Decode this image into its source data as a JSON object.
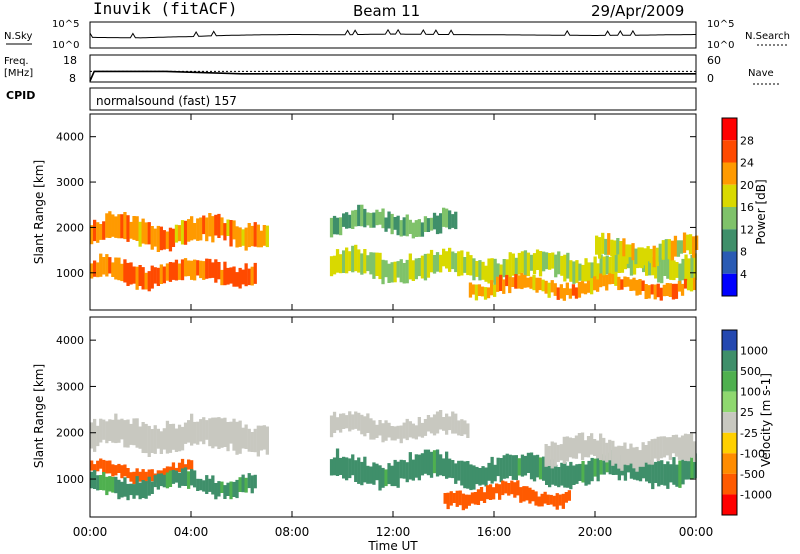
{
  "header": {
    "station": "Inuvik (fitACF)",
    "beam": "Beam 11",
    "date": "29/Apr/2009"
  },
  "noise_panel": {
    "left_label": "N.Sky",
    "left_ticks": [
      "10^5",
      "10^0"
    ],
    "right_ticks": [
      "10^5",
      "10^0"
    ],
    "right_label": "N.Search"
  },
  "freq_panel": {
    "left_label_top": "Freq.",
    "left_label_bottom": "[MHz]",
    "left_ticks": [
      "18",
      "8"
    ],
    "right_ticks": [
      "60",
      "0"
    ],
    "right_label": "Nave"
  },
  "cpid_panel": {
    "label": "CPID",
    "text": "normalsound (fast)  157"
  },
  "colors": {
    "power_scale": [
      "#0000ff",
      "#2a5bb4",
      "#3f8f6a",
      "#7fc26a",
      "#d9d900",
      "#ff9a00",
      "#ff4a00",
      "#ff0000"
    ],
    "velocity_scale": [
      "#2448b0",
      "#3f8f6a",
      "#4fb04f",
      "#8fd86f",
      "#c8c8c0",
      "#ffd000",
      "#ff8c00",
      "#ff5a00",
      "#ff0000"
    ]
  },
  "chart_data": [
    {
      "type": "line",
      "title": "",
      "series": [
        {
          "name": "N.Sky",
          "x": [
            "00:00",
            "02:00",
            "04:00",
            "06:00",
            "08:00",
            "10:00",
            "12:00",
            "14:00",
            "16:00",
            "18:00",
            "20:00",
            "22:00",
            "00:00"
          ],
          "values": [
            100,
            80,
            150,
            300,
            400,
            350,
            500,
            400,
            350,
            300,
            250,
            300,
            400
          ]
        },
        {
          "name": "N.Search",
          "x": [
            "00:00",
            "02:00",
            "04:00",
            "06:00",
            "08:00",
            "10:00",
            "12:00",
            "14:00",
            "16:00",
            "18:00",
            "20:00",
            "22:00",
            "00:00"
          ],
          "values": [
            80,
            70,
            100,
            200,
            250,
            250,
            300,
            280,
            250,
            220,
            200,
            220,
            250
          ]
        }
      ],
      "ylim": [
        1,
        100000
      ],
      "log_scale": true
    },
    {
      "type": "line",
      "title": "",
      "series": [
        {
          "name": "Freq. [MHz]",
          "x": [
            "00:00",
            "00:10",
            "03:00",
            "06:00",
            "09:00",
            "12:00",
            "15:00",
            "18:00",
            "21:00",
            "00:00"
          ],
          "values": [
            8,
            12,
            12,
            11,
            11,
            11,
            11,
            11,
            11,
            11
          ]
        },
        {
          "name": "Nave",
          "x": [
            "00:00",
            "24:00"
          ],
          "values": [
            24,
            24
          ]
        }
      ],
      "ylim_left": [
        8,
        18
      ],
      "ylim_right": [
        0,
        60
      ]
    },
    {
      "type": "heatmap",
      "title": "",
      "xlabel": "",
      "ylabel": "Slant Range [km]",
      "x_ticks": [
        "00:00",
        "04:00",
        "08:00",
        "12:00",
        "16:00",
        "20:00",
        "00:00"
      ],
      "y_ticks": [
        "1000",
        "2000",
        "3000",
        "4000"
      ],
      "ylim": [
        180,
        4500
      ],
      "colorbar_label": "Power [dB]",
      "colorbar_ticks": [
        "4",
        "8",
        "12",
        "16",
        "20",
        "24",
        "28"
      ],
      "bands": [
        {
          "t_start": 0.0,
          "t_end": 7.0,
          "range_center": 1900,
          "range_width": 500,
          "value": 22
        },
        {
          "t_start": 0.0,
          "t_end": 6.5,
          "range_center": 1000,
          "range_width": 450,
          "value": 24
        },
        {
          "t_start": 9.5,
          "t_end": 14.5,
          "range_center": 2100,
          "range_width": 400,
          "value": 12
        },
        {
          "t_start": 9.5,
          "t_end": 24.0,
          "range_center": 1150,
          "range_width": 500,
          "value": 16
        },
        {
          "t_start": 15.0,
          "t_end": 24.0,
          "range_center": 700,
          "range_width": 300,
          "value": 22
        },
        {
          "t_start": 20.0,
          "t_end": 24.0,
          "range_center": 1500,
          "range_width": 400,
          "value": 18
        }
      ]
    },
    {
      "type": "heatmap",
      "title": "",
      "xlabel": "Time UT",
      "ylabel": "Slant Range [km]",
      "x_ticks": [
        "00:00",
        "04:00",
        "08:00",
        "12:00",
        "16:00",
        "20:00",
        "00:00"
      ],
      "y_ticks": [
        "1000",
        "2000",
        "3000",
        "4000"
      ],
      "ylim": [
        180,
        4500
      ],
      "colorbar_label": "Velocity [m s-1]",
      "colorbar_ticks": [
        "1000",
        "500",
        "100",
        "25",
        "-25",
        "-100",
        "-500",
        "-1000"
      ],
      "bands": [
        {
          "t_start": 0.0,
          "t_end": 7.0,
          "range_center": 1950,
          "range_width": 600,
          "value": 0
        },
        {
          "t_start": 0.0,
          "t_end": 4.0,
          "range_center": 1150,
          "range_width": 250,
          "value": -300
        },
        {
          "t_start": 0.0,
          "t_end": 6.5,
          "range_center": 900,
          "range_width": 350,
          "value": 150
        },
        {
          "t_start": 9.5,
          "t_end": 15.0,
          "range_center": 2100,
          "range_width": 400,
          "value": 0
        },
        {
          "t_start": 9.5,
          "t_end": 24.0,
          "range_center": 1200,
          "range_width": 500,
          "value": 200
        },
        {
          "t_start": 14.0,
          "t_end": 19.0,
          "range_center": 650,
          "range_width": 300,
          "value": -300
        },
        {
          "t_start": 18.0,
          "t_end": 24.0,
          "range_center": 1600,
          "range_width": 500,
          "value": 0
        }
      ]
    }
  ]
}
